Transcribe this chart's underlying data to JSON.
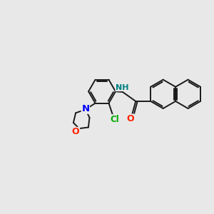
{
  "background_color": "#e8e8e8",
  "bond_color": "#1a1a1a",
  "bond_width": 1.4,
  "atom_colors": {
    "N": "#0000ff",
    "NH": "#008080",
    "O": "#ff2000",
    "Cl": "#00aa00",
    "C": "#1a1a1a"
  },
  "font_size": 8.5,
  "dbo": 0.055
}
